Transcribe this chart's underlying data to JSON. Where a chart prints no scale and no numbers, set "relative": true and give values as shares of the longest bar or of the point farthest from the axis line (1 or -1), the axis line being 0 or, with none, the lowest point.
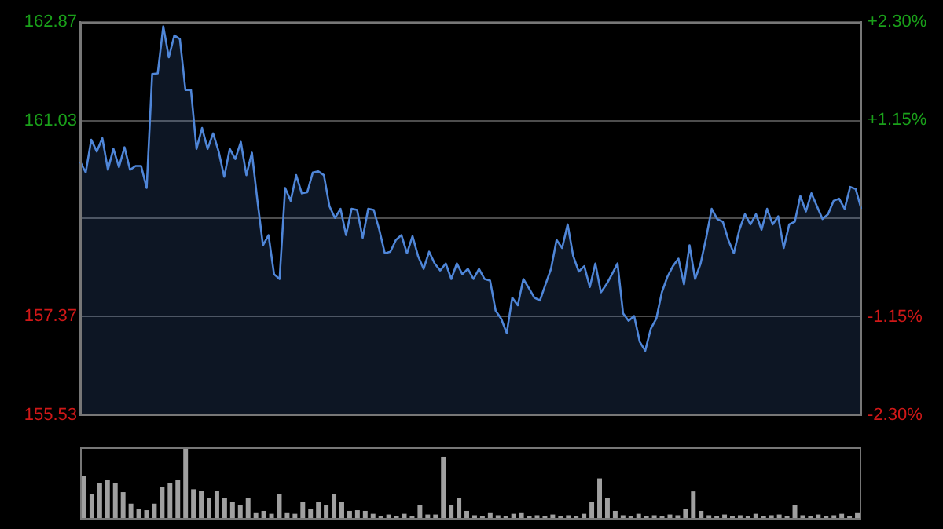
{
  "chart_data": [
    {
      "type": "area",
      "categories": [
        null,
        null,
        null,
        null,
        null,
        null,
        null,
        null,
        null,
        null,
        null,
        null,
        null,
        null,
        null,
        null,
        null,
        null,
        null,
        null,
        null,
        null,
        null,
        null,
        null,
        null,
        null,
        null,
        null,
        null,
        null,
        null,
        null,
        null,
        null,
        null,
        null,
        null,
        null,
        null,
        null,
        null,
        null,
        null,
        null,
        null,
        null,
        null,
        null,
        null,
        null,
        null,
        null,
        null,
        null,
        null,
        null,
        null,
        null,
        null,
        null,
        null,
        null,
        null,
        null,
        null,
        null,
        null,
        null,
        null,
        null,
        null,
        null,
        null,
        null,
        null,
        null,
        null,
        null,
        null,
        null,
        null,
        null,
        null,
        null,
        null,
        null,
        null,
        null,
        null,
        null,
        null,
        null,
        null,
        null,
        null,
        null,
        null,
        null,
        null,
        null,
        null,
        null,
        null,
        null,
        null,
        null,
        null,
        null,
        null,
        null,
        null,
        null,
        null,
        null,
        null,
        null,
        null,
        null,
        null,
        null,
        null,
        null,
        null,
        null,
        null,
        null,
        null,
        null,
        null,
        null,
        null,
        null,
        null,
        null,
        null,
        null,
        null,
        null,
        null,
        null,
        null
      ],
      "ylim": [
        155.53,
        162.87
      ],
      "yticks": [
        155.53,
        157.37,
        {
          "value": 159.2,
          "label": null
        },
        161.03,
        162.87
      ],
      "y2lim": [
        -2.3,
        2.3
      ],
      "y2ticks": [
        {
          "value": -2.3,
          "label": "-2.30%"
        },
        {
          "value": -1.15,
          "label": "-1.15%"
        },
        {
          "value": 0,
          "label": null
        },
        {
          "value": 1.15,
          "label": "+1.15%"
        },
        {
          "value": 2.3,
          "label": "+2.30%"
        }
      ],
      "grid": "y",
      "series": [
        {
          "color": "#4f86d8",
          "values": [
            160.26,
            160.06,
            160.67,
            160.45,
            160.7,
            160.11,
            160.5,
            160.16,
            160.53,
            160.11,
            160.18,
            160.18,
            159.77,
            161.9,
            161.91,
            162.79,
            162.21,
            162.62,
            162.55,
            161.6,
            161.6,
            160.5,
            160.89,
            160.5,
            160.79,
            160.45,
            159.98,
            160.5,
            160.31,
            160.63,
            160.01,
            160.43,
            159.53,
            158.7,
            158.89,
            158.16,
            158.07,
            159.77,
            159.53,
            160.01,
            159.67,
            159.69,
            160.06,
            160.08,
            160.01,
            159.43,
            159.21,
            159.38,
            158.89,
            159.38,
            159.36,
            158.84,
            159.38,
            159.36,
            158.99,
            158.55,
            158.58,
            158.8,
            158.89,
            158.55,
            158.87,
            158.5,
            158.26,
            158.58,
            158.36,
            158.23,
            158.36,
            158.07,
            158.36,
            158.16,
            158.26,
            158.07,
            158.26,
            158.07,
            158.04,
            157.48,
            157.33,
            157.06,
            157.72,
            157.58,
            158.07,
            157.9,
            157.72,
            157.67,
            157.97,
            158.26,
            158.8,
            158.65,
            159.09,
            158.5,
            158.21,
            158.31,
            157.92,
            158.36,
            157.82,
            157.97,
            158.16,
            158.36,
            157.43,
            157.29,
            157.38,
            156.9,
            156.73,
            157.14,
            157.33,
            157.82,
            158.11,
            158.31,
            158.45,
            157.97,
            158.7,
            158.07,
            158.36,
            158.84,
            159.38,
            159.19,
            159.14,
            158.8,
            158.55,
            158.99,
            159.28,
            159.09,
            159.28,
            158.99,
            159.38,
            159.09,
            159.24,
            158.65,
            159.09,
            159.14,
            159.62,
            159.33,
            159.67,
            159.43,
            159.19,
            159.28,
            159.53,
            159.57,
            159.38,
            159.79,
            159.75,
            159.38
          ]
        }
      ]
    },
    {
      "type": "bar",
      "relative": true,
      "color": "#a0a0a0",
      "categories": [
        null,
        null,
        null,
        null,
        null,
        null,
        null,
        null,
        null,
        null,
        null,
        null,
        null,
        null,
        null,
        null,
        null,
        null,
        null,
        null,
        null,
        null,
        null,
        null,
        null,
        null,
        null,
        null,
        null,
        null,
        null,
        null,
        null,
        null,
        null,
        null,
        null,
        null,
        null,
        null,
        null,
        null,
        null,
        null,
        null,
        null,
        null,
        null,
        null,
        null,
        null,
        null,
        null,
        null,
        null,
        null,
        null,
        null,
        null,
        null,
        null,
        null,
        null,
        null,
        null,
        null,
        null,
        null,
        null,
        null,
        null,
        null,
        null,
        null,
        null,
        null,
        null,
        null,
        null,
        null,
        null,
        null,
        null,
        null,
        null,
        null,
        null,
        null,
        null,
        null,
        null,
        null,
        null,
        null,
        null,
        null,
        null,
        null,
        null,
        null
      ],
      "values": [
        0.6,
        0.35,
        0.5,
        0.55,
        0.5,
        0.38,
        0.22,
        0.15,
        0.13,
        0.22,
        0.45,
        0.5,
        0.55,
        1.0,
        0.42,
        0.4,
        0.3,
        0.4,
        0.3,
        0.25,
        0.2,
        0.3,
        0.1,
        0.12,
        0.08,
        0.35,
        0.1,
        0.08,
        0.25,
        0.15,
        0.25,
        0.2,
        0.35,
        0.25,
        0.12,
        0.13,
        0.12,
        0.08,
        0.05,
        0.07,
        0.05,
        0.08,
        0.05,
        0.2,
        0.07,
        0.07,
        0.87,
        0.2,
        0.3,
        0.12,
        0.06,
        0.05,
        0.1,
        0.06,
        0.05,
        0.08,
        0.1,
        0.05,
        0.06,
        0.05,
        0.07,
        0.05,
        0.06,
        0.05,
        0.08,
        0.25,
        0.57,
        0.3,
        0.12,
        0.06,
        0.05,
        0.08,
        0.05,
        0.06,
        0.05,
        0.07,
        0.06,
        0.15,
        0.39,
        0.12,
        0.06,
        0.05,
        0.07,
        0.05,
        0.06,
        0.05,
        0.08,
        0.05,
        0.06,
        0.07,
        0.05,
        0.2,
        0.06,
        0.05,
        0.07,
        0.05,
        0.06,
        0.08,
        0.05,
        0.1
      ]
    }
  ]
}
